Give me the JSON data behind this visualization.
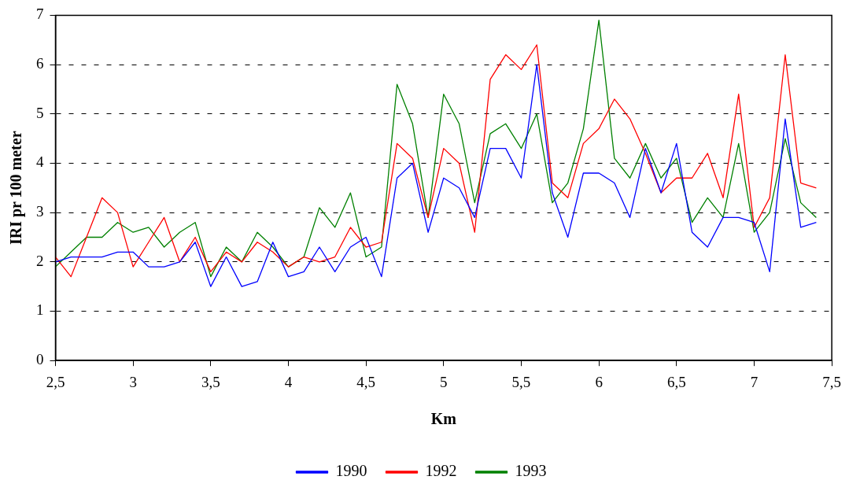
{
  "chart_data": {
    "type": "line",
    "xlabel": "Km",
    "ylabel": "IRI pr 100 meter",
    "x": [
      2.5,
      2.6,
      2.7,
      2.8,
      2.9,
      3.0,
      3.1,
      3.2,
      3.3,
      3.4,
      3.5,
      3.6,
      3.7,
      3.8,
      3.9,
      4.0,
      4.1,
      4.2,
      4.3,
      4.4,
      4.5,
      4.6,
      4.7,
      4.8,
      4.9,
      5.0,
      5.1,
      5.2,
      5.3,
      5.4,
      5.5,
      5.6,
      5.7,
      5.8,
      5.9,
      6.0,
      6.1,
      6.2,
      6.3,
      6.4,
      6.5,
      6.6,
      6.7,
      6.8,
      6.9,
      7.0,
      7.1,
      7.2,
      7.3,
      7.4
    ],
    "series": [
      {
        "name": "1990",
        "color": "#0000ff",
        "values": [
          2.0,
          2.1,
          2.1,
          2.1,
          2.2,
          2.2,
          1.9,
          1.9,
          2.0,
          2.4,
          1.5,
          2.1,
          1.5,
          1.6,
          2.4,
          1.7,
          1.8,
          2.3,
          1.8,
          2.3,
          2.5,
          1.7,
          3.7,
          4.0,
          2.6,
          3.7,
          3.5,
          2.9,
          4.3,
          4.3,
          3.7,
          6.0,
          3.4,
          2.5,
          3.8,
          3.8,
          3.6,
          2.9,
          4.3,
          3.4,
          4.4,
          2.6,
          2.3,
          2.9,
          2.9,
          2.8,
          1.8,
          4.9,
          2.7,
          2.8
        ]
      },
      {
        "name": "1992",
        "color": "#ff0000",
        "values": [
          2.1,
          1.7,
          2.5,
          3.3,
          3.0,
          1.9,
          2.4,
          2.9,
          2.0,
          2.5,
          1.8,
          2.2,
          2.0,
          2.4,
          2.2,
          1.9,
          2.1,
          2.0,
          2.1,
          2.7,
          2.3,
          2.4,
          4.4,
          4.1,
          2.9,
          4.3,
          4.0,
          2.6,
          5.7,
          6.2,
          5.9,
          6.4,
          3.6,
          3.3,
          4.4,
          4.7,
          5.3,
          4.9,
          4.2,
          3.4,
          3.7,
          3.7,
          4.2,
          3.3,
          5.4,
          2.7,
          3.3,
          6.2,
          3.6,
          3.5
        ]
      },
      {
        "name": "1993",
        "color": "#008000",
        "values": [
          1.9,
          2.2,
          2.5,
          2.5,
          2.8,
          2.6,
          2.7,
          2.3,
          2.6,
          2.8,
          1.7,
          2.3,
          2.0,
          2.6,
          2.3,
          1.9,
          2.1,
          3.1,
          2.7,
          3.4,
          2.1,
          2.3,
          5.6,
          4.8,
          2.9,
          5.4,
          4.8,
          3.2,
          4.6,
          4.8,
          4.3,
          5.0,
          3.2,
          3.6,
          4.7,
          6.9,
          4.1,
          3.7,
          4.4,
          3.7,
          4.1,
          2.8,
          3.3,
          2.9,
          4.4,
          2.6,
          3.0,
          4.5,
          3.2,
          2.9
        ]
      }
    ],
    "xlim": [
      2.5,
      7.5
    ],
    "xticks": [
      {
        "value": 2.5,
        "label": "2,5"
      },
      3,
      {
        "value": 3.5,
        "label": "3,5"
      },
      4,
      {
        "value": 4.5,
        "label": "4,5"
      },
      5,
      {
        "value": 5.5,
        "label": "5,5"
      },
      6,
      {
        "value": 6.5,
        "label": "6,5"
      },
      7,
      {
        "value": 7.5,
        "label": "7,5"
      }
    ],
    "ylim": [
      0,
      7
    ],
    "yticks": [
      0,
      1,
      2,
      3,
      4,
      5,
      6,
      7
    ],
    "grid": "y",
    "legend": "bottom",
    "marker": "none",
    "line_style": "solid"
  }
}
